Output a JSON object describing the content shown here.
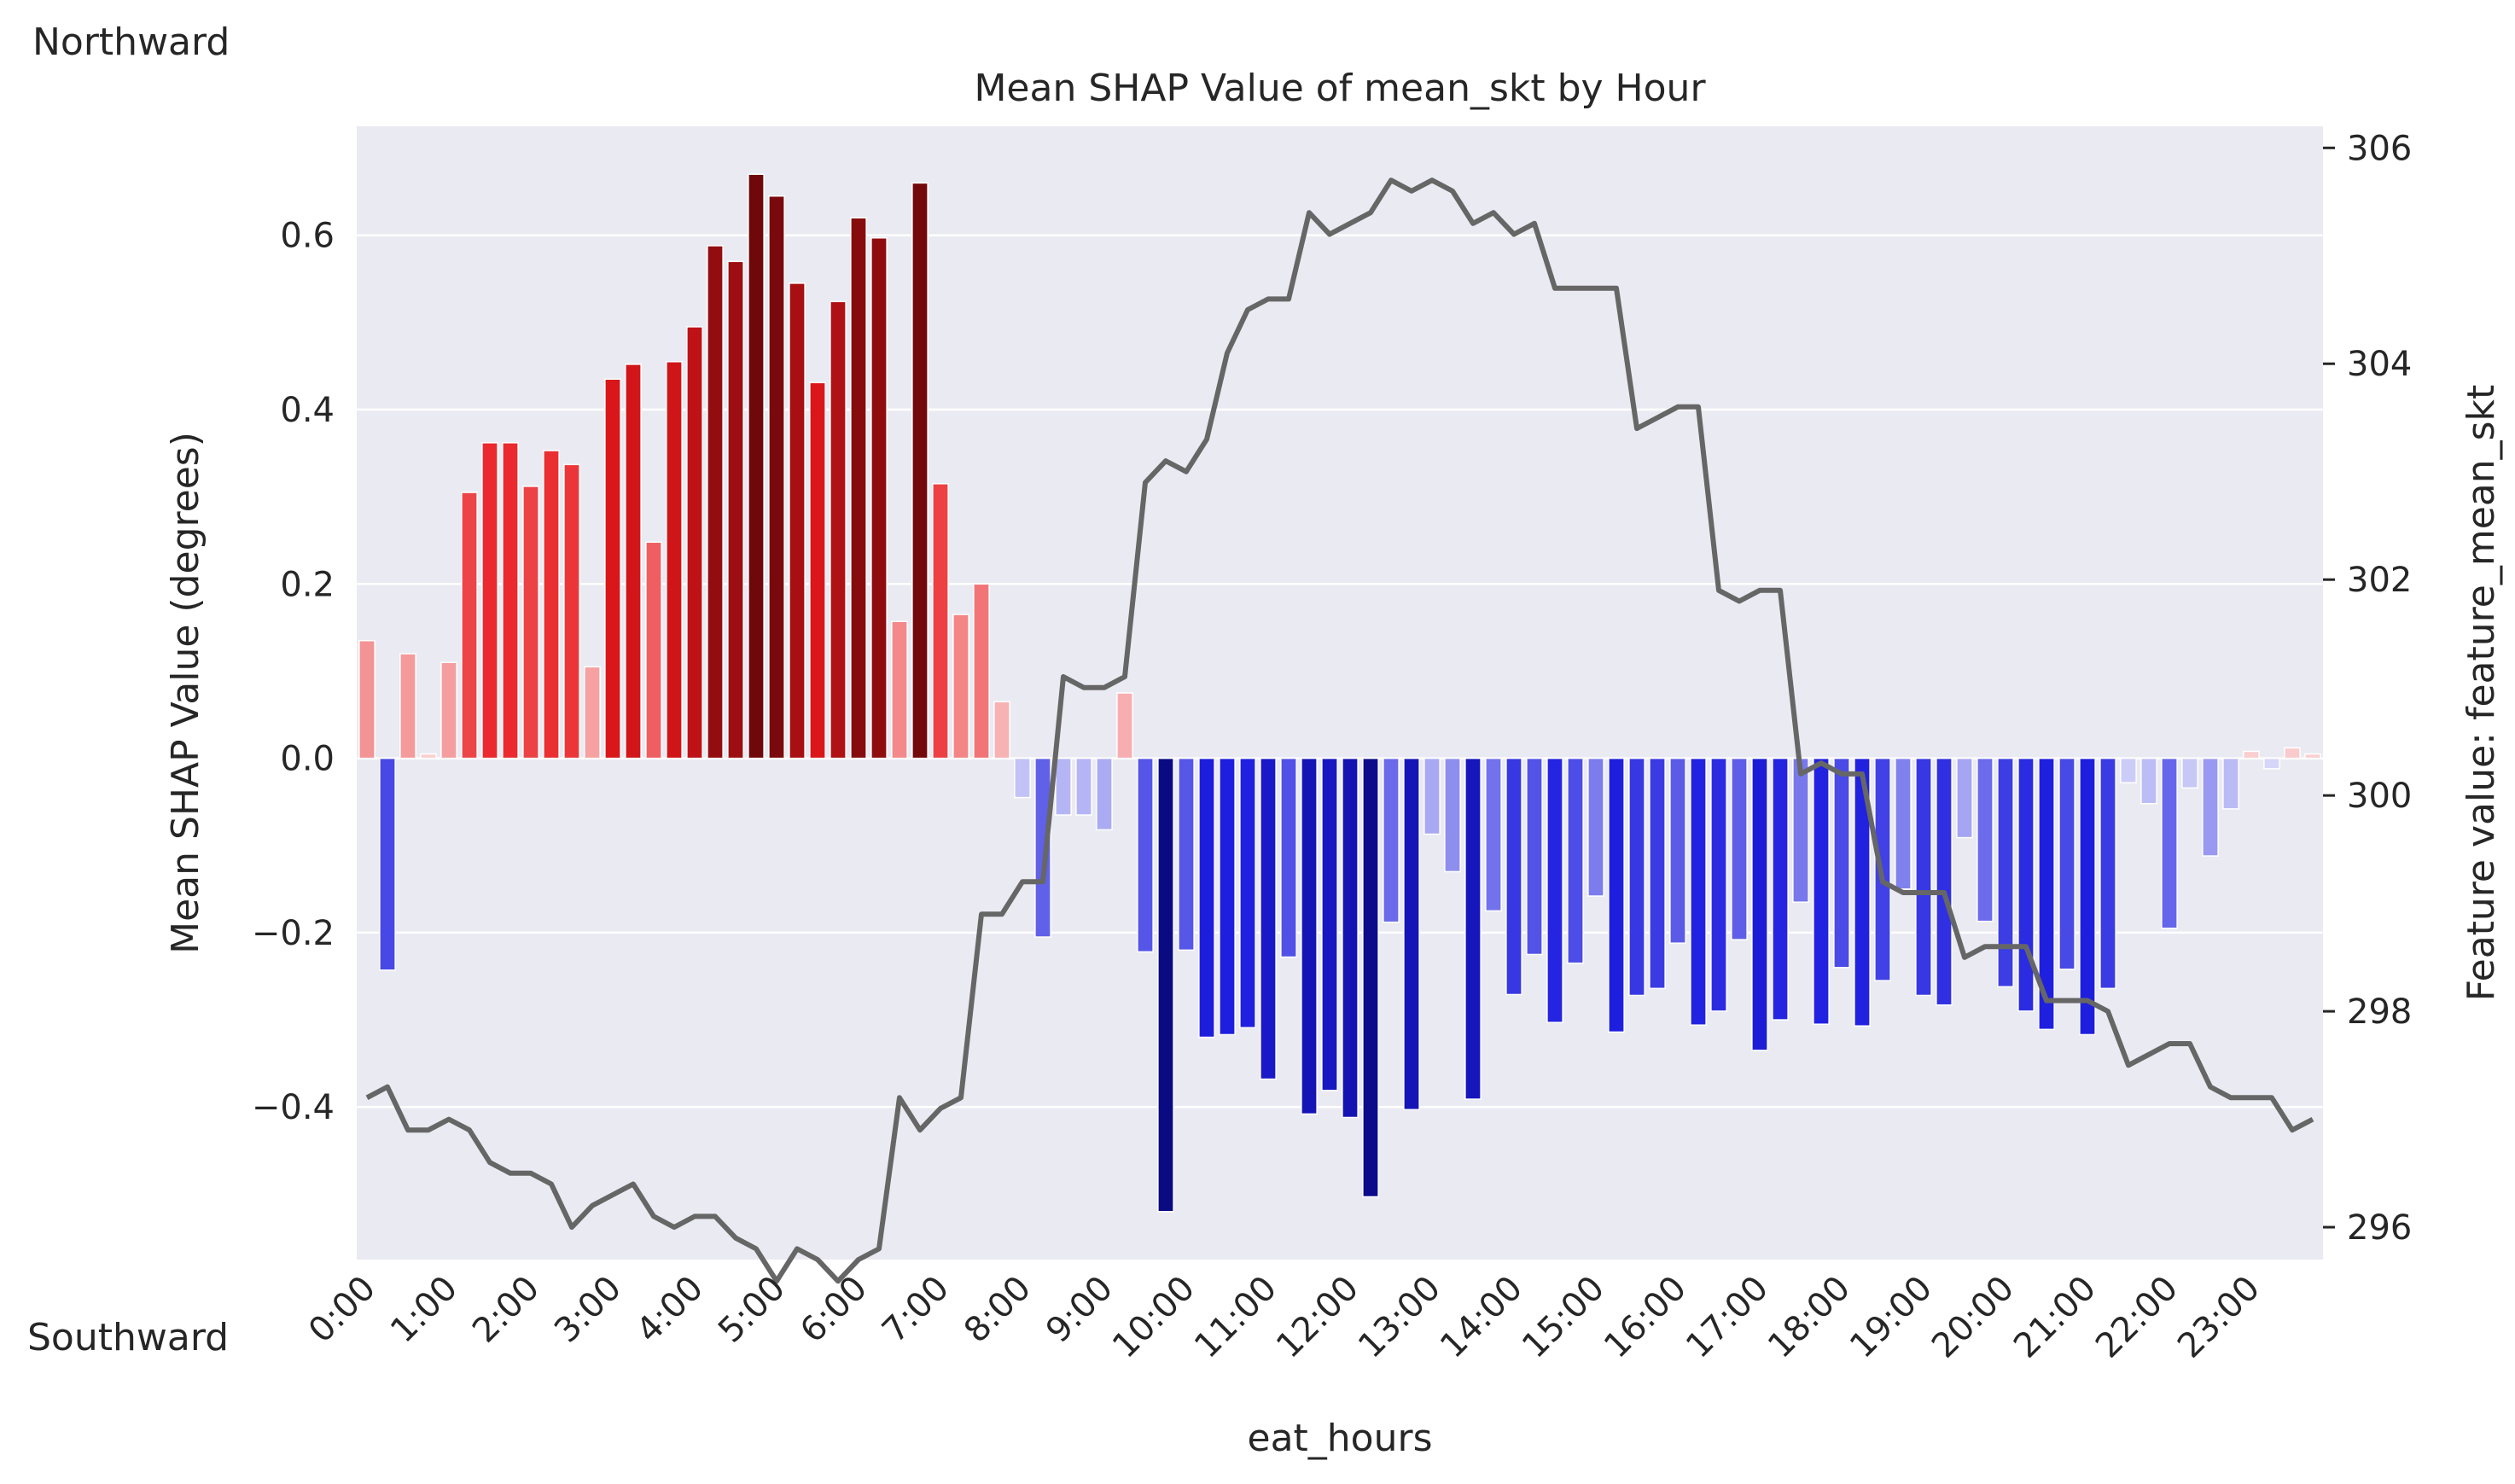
{
  "chart_data": {
    "type": "bar",
    "title": "Mean SHAP Value of mean_skt by Hour",
    "xlabel": "eat_hours",
    "ylabel": "Mean SHAP Value (degrees)",
    "y2label": "Feature value: feature_mean_skt",
    "top_annotation": "Northward",
    "bottom_annotation": "Southward",
    "ylim": [
      -0.575,
      0.725
    ],
    "y2lim": [
      295.7,
      306.2
    ],
    "yticks": [
      "0.6",
      "0.4",
      "0.2",
      "0.0",
      "−0.2",
      "−0.4"
    ],
    "y2ticks": [
      "306",
      "304",
      "302",
      "300",
      "298",
      "296"
    ],
    "xtick_labels": [
      "0:00",
      "1:00",
      "2:00",
      "3:00",
      "4:00",
      "5:00",
      "6:00",
      "7:00",
      "8:00",
      "9:00",
      "10:00",
      "11:00",
      "12:00",
      "13:00",
      "14:00",
      "15:00",
      "16:00",
      "17:00",
      "18:00",
      "19:00",
      "20:00",
      "21:00",
      "22:00",
      "23:00"
    ],
    "x_step_minutes": 15,
    "shap_values": [
      0.135,
      -0.243,
      0.12,
      0.005,
      0.11,
      0.305,
      0.362,
      0.362,
      0.312,
      0.353,
      0.337,
      0.105,
      0.435,
      0.452,
      0.248,
      0.455,
      0.495,
      0.588,
      0.57,
      0.67,
      0.645,
      0.545,
      0.431,
      0.524,
      0.62,
      0.597,
      0.157,
      0.66,
      0.315,
      0.165,
      0.2,
      0.065,
      -0.045,
      -0.205,
      -0.065,
      -0.065,
      -0.082,
      0.075,
      -0.222,
      -0.52,
      -0.22,
      -0.32,
      -0.317,
      -0.309,
      -0.368,
      -0.228,
      -0.408,
      -0.381,
      -0.412,
      -0.503,
      -0.188,
      -0.403,
      -0.087,
      -0.13,
      -0.391,
      -0.175,
      -0.271,
      -0.225,
      -0.303,
      -0.235,
      -0.158,
      -0.314,
      -0.272,
      -0.264,
      -0.212,
      -0.306,
      -0.29,
      -0.208,
      -0.335,
      -0.3,
      -0.165,
      -0.305,
      -0.24,
      -0.307,
      -0.255,
      -0.15,
      -0.272,
      -0.283,
      -0.091,
      -0.187,
      -0.262,
      -0.29,
      -0.311,
      -0.242,
      -0.317,
      -0.264,
      -0.028,
      -0.052,
      -0.195,
      -0.034,
      -0.112,
      -0.058,
      0.008,
      -0.012,
      0.012,
      0.005
    ],
    "feature_values": [
      297.2,
      297.3,
      296.9,
      296.9,
      297.0,
      296.9,
      296.6,
      296.5,
      296.5,
      296.4,
      296.0,
      296.2,
      296.3,
      296.4,
      296.1,
      296.0,
      296.1,
      296.1,
      295.9,
      295.8,
      295.5,
      295.8,
      295.7,
      295.5,
      295.7,
      295.8,
      297.2,
      296.9,
      297.1,
      297.2,
      298.9,
      298.9,
      299.2,
      299.2,
      301.1,
      301.0,
      301.0,
      301.1,
      302.9,
      303.1,
      303.0,
      303.3,
      304.1,
      304.5,
      304.6,
      304.6,
      305.4,
      305.2,
      305.3,
      305.4,
      305.7,
      305.6,
      305.7,
      305.6,
      305.3,
      305.4,
      305.2,
      305.3,
      304.7,
      304.7,
      304.7,
      304.7,
      303.4,
      303.5,
      303.6,
      303.6,
      301.9,
      301.8,
      301.9,
      301.9,
      300.2,
      300.3,
      300.2,
      300.2,
      299.2,
      299.1,
      299.1,
      299.1,
      298.5,
      298.6,
      298.6,
      298.6,
      298.1,
      298.1,
      298.1,
      298.0,
      297.5,
      297.6,
      297.7,
      297.7,
      297.3,
      297.2,
      297.2,
      297.2,
      296.9,
      297.0
    ],
    "positive_color": "#c8102e",
    "negative_color": "#1a1acc",
    "line_color": "#666666",
    "background_color": "#eaeaf2",
    "grid": true
  }
}
